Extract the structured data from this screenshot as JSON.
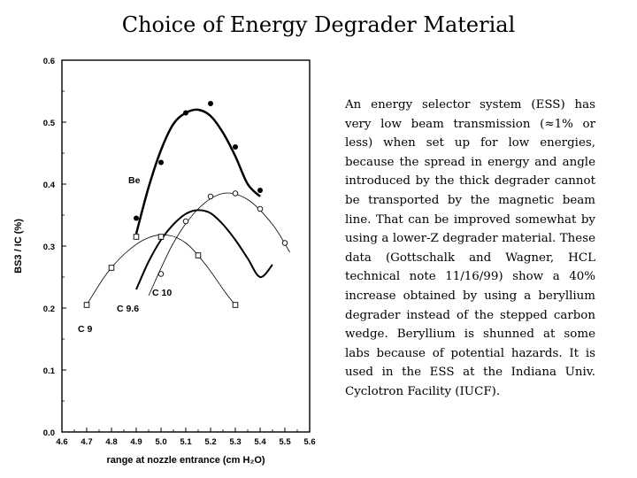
{
  "slide": {
    "title": "Choice of Energy Degrader Material",
    "paragraph": "An energy selector system (ESS) has very low beam transmission (≈1% or less) when set up for low energies, because the spread in energy and angle introduced by the thick degrader cannot be transported by the magnetic beam line. That can be improved somewhat by using a lower-Z degrader material. These data (Gottschalk and Wagner, HCL technical note 11/16/99) show a 40% increase obtained by using a beryllium degrader instead of the stepped carbon wedge. Beryllium is shunned at some labs because of potential hazards. It is used in the ESS at the Indiana Univ. Cyclotron Facility (IUCF)."
  },
  "chart_data": {
    "type": "scatter",
    "xlabel": "range at nozzle entrance  (cm H₂O)",
    "ylabel": "BS3 / IC  (%)",
    "xlim": [
      4.6,
      5.6
    ],
    "ylim": [
      0.0,
      0.6
    ],
    "xticks": [
      "4.6",
      "4.7",
      "4.8",
      "4.9",
      "5.0",
      "5.1",
      "5.2",
      "5.3",
      "5.4",
      "5.5",
      "5.6"
    ],
    "yticks": [
      "0.0",
      "0.1",
      "0.2",
      "0.3",
      "0.4",
      "0.5",
      "0.6"
    ],
    "grid": false,
    "series": [
      {
        "name": "Be",
        "marker": "filled-circle",
        "x": [
          4.9,
          5.0,
          5.1,
          5.2,
          5.3,
          5.4
        ],
        "y": [
          0.345,
          0.435,
          0.515,
          0.53,
          0.46,
          0.39
        ],
        "fit": {
          "x": [
            4.9,
            4.95,
            5.0,
            5.05,
            5.1,
            5.15,
            5.2,
            5.25,
            5.3,
            5.35,
            5.4
          ],
          "y": [
            0.32,
            0.395,
            0.455,
            0.497,
            0.515,
            0.52,
            0.51,
            0.483,
            0.445,
            0.4,
            0.38
          ]
        },
        "line_width": 2.5
      },
      {
        "name": "C 10",
        "marker": "open-circle",
        "x": [
          5.0,
          5.1,
          5.2,
          5.3,
          5.4,
          5.5
        ],
        "y": [
          0.255,
          0.34,
          0.38,
          0.385,
          0.36,
          0.305
        ],
        "fit": {
          "x": [
            4.95,
            5.05,
            5.15,
            5.25,
            5.35,
            5.45,
            5.52
          ],
          "y": [
            0.22,
            0.305,
            0.36,
            0.385,
            0.375,
            0.335,
            0.29
          ]
        },
        "line_width": 0.8
      },
      {
        "name": "C 9.6",
        "marker": "none",
        "x": [
          4.9,
          4.95,
          5.0,
          5.05,
          5.1,
          5.15,
          5.2,
          5.25,
          5.3,
          5.35,
          5.4,
          5.45
        ],
        "y": [
          0.23,
          0.275,
          0.31,
          0.335,
          0.352,
          0.358,
          0.353,
          0.335,
          0.31,
          0.28,
          0.25,
          0.27
        ],
        "line_width": 2.0
      },
      {
        "name": "C 9",
        "marker": "open-square",
        "x": [
          4.7,
          4.8,
          4.9,
          5.0,
          5.15,
          5.3
        ],
        "y": [
          0.205,
          0.265,
          0.315,
          0.315,
          0.285,
          0.205
        ],
        "fit": {
          "x": [
            4.7,
            4.78,
            4.86,
            4.94,
            5.02,
            5.1,
            5.18,
            5.26,
            5.3
          ],
          "y": [
            0.205,
            0.255,
            0.29,
            0.312,
            0.318,
            0.305,
            0.27,
            0.225,
            0.205
          ]
        },
        "line_width": 0.8
      }
    ]
  }
}
